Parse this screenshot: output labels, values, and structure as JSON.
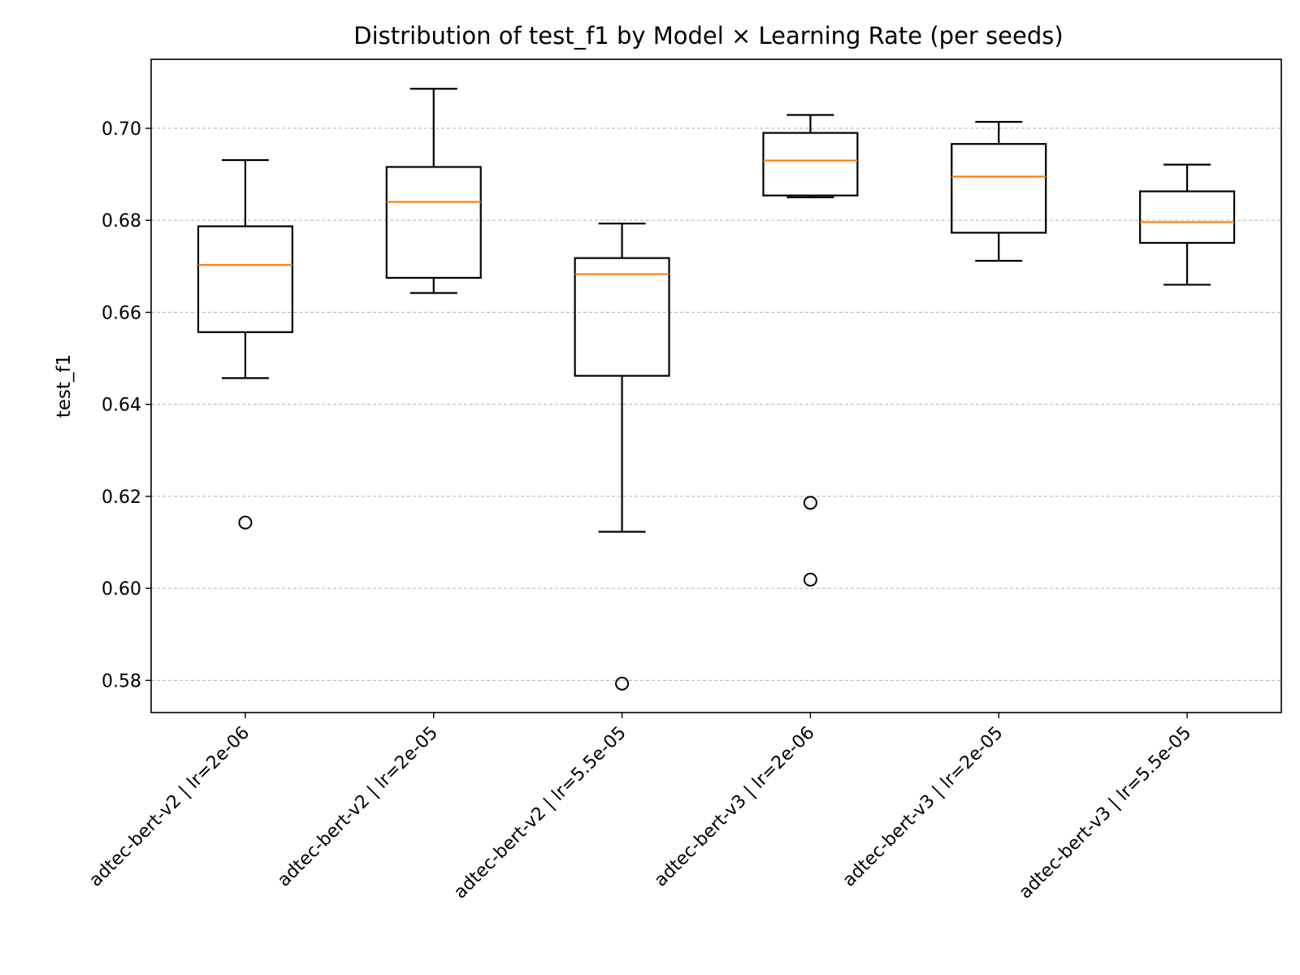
{
  "chart_data": {
    "type": "box",
    "title": "Distribution of test_f1 by Model × Learning Rate (per seeds)",
    "xlabel": "",
    "ylabel": "test_f1",
    "ylim": [
      0.573,
      0.715
    ],
    "yticks": [
      "0.58",
      "0.60",
      "0.62",
      "0.64",
      "0.66",
      "0.68",
      "0.70"
    ],
    "grid": "y-dashed",
    "categories": [
      "adtec-bert-v2 | lr=2e-06",
      "adtec-bert-v2 | lr=2e-05",
      "adtec-bert-v2 | lr=5.5e-05",
      "adtec-bert-v3 | lr=2e-06",
      "adtec-bert-v3 | lr=2e-05",
      "adtec-bert-v3 | lr=5.5e-05"
    ],
    "boxes": [
      {
        "whisker_low": 0.6457,
        "q1": 0.6557,
        "median": 0.6703,
        "q3": 0.6787,
        "whisker_high": 0.6931,
        "outliers": [
          0.6143
        ]
      },
      {
        "whisker_low": 0.6642,
        "q1": 0.6675,
        "median": 0.684,
        "q3": 0.6916,
        "whisker_high": 0.7086,
        "outliers": []
      },
      {
        "whisker_low": 0.6123,
        "q1": 0.6462,
        "median": 0.6683,
        "q3": 0.6718,
        "whisker_high": 0.6793,
        "outliers": [
          0.5793
        ]
      },
      {
        "whisker_low": 0.685,
        "q1": 0.6854,
        "median": 0.693,
        "q3": 0.699,
        "whisker_high": 0.7029,
        "outliers": [
          0.6186,
          0.6019
        ]
      },
      {
        "whisker_low": 0.6712,
        "q1": 0.6773,
        "median": 0.6895,
        "q3": 0.6966,
        "whisker_high": 0.7014,
        "outliers": []
      },
      {
        "whisker_low": 0.666,
        "q1": 0.6751,
        "median": 0.6796,
        "q3": 0.6863,
        "whisker_high": 0.6921,
        "outliers": []
      }
    ],
    "colors": {
      "box": "#000000",
      "median": "#ff7f0e",
      "grid": "#b0b0b0"
    }
  }
}
